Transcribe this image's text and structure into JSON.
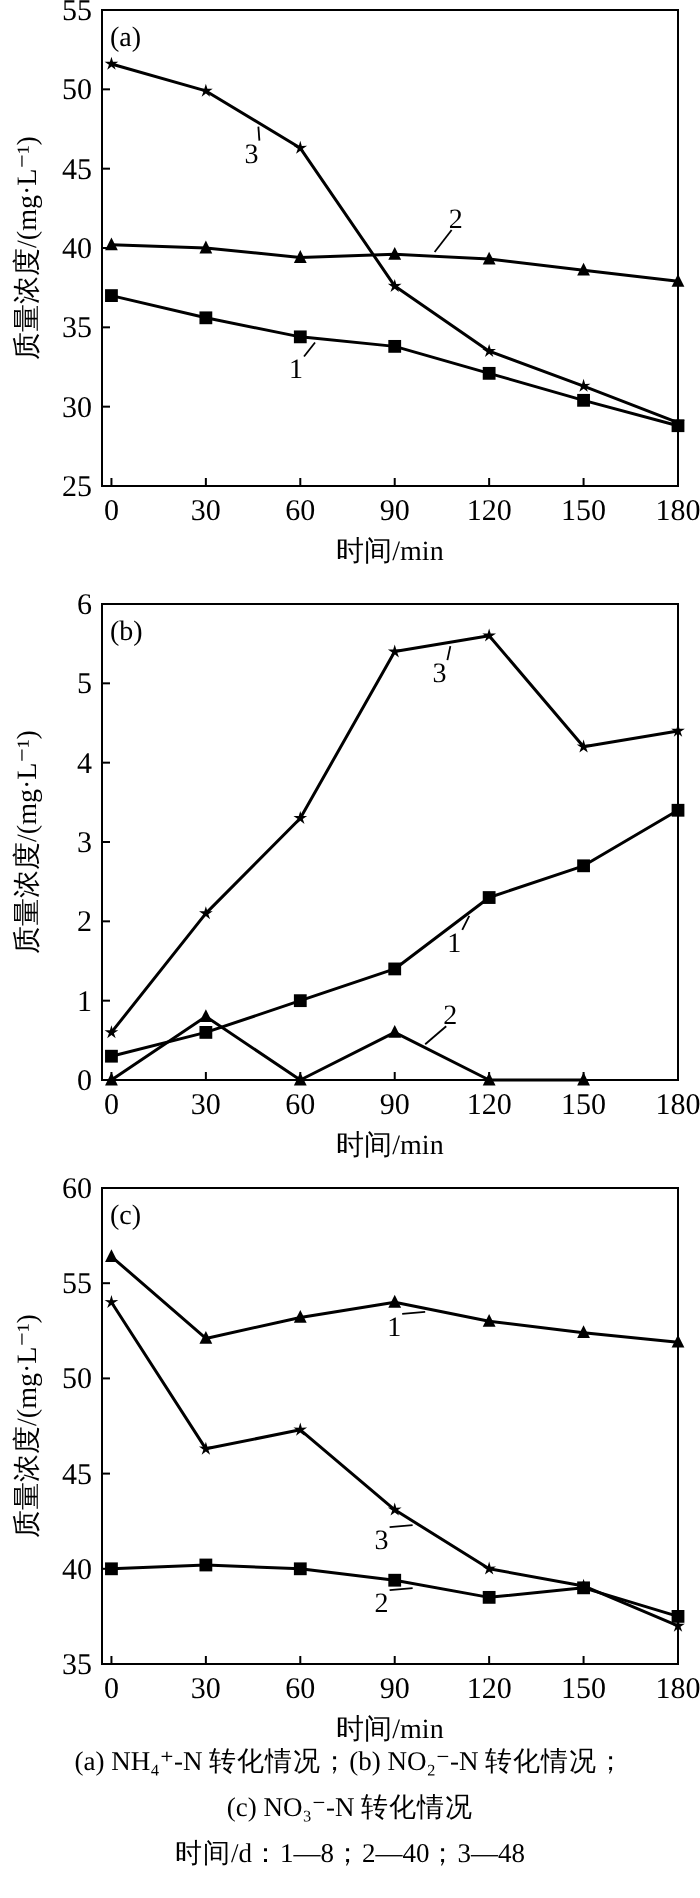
{
  "chart_data": [
    {
      "type": "line",
      "title": "(a)",
      "xlabel": "时间/min",
      "ylabel": "质量浓度/(mg·L⁻¹)",
      "x": [
        0,
        30,
        60,
        90,
        120,
        150,
        180
      ],
      "xlim": [
        -3,
        180
      ],
      "xticks": [
        0,
        30,
        60,
        90,
        120,
        150,
        180
      ],
      "ylim": [
        25,
        55
      ],
      "yticks": [
        25,
        30,
        35,
        40,
        45,
        50,
        55
      ],
      "series": [
        {
          "color": "#000000",
          "marker": "square",
          "values": [
            37.0,
            35.6,
            34.4,
            33.8,
            32.1,
            30.4,
            28.8
          ]
        },
        {
          "color": "#000000",
          "marker": "triangle",
          "values": [
            40.2,
            40.0,
            39.4,
            39.6,
            39.3,
            38.6,
            37.9
          ]
        },
        {
          "color": "#000000",
          "marker": "star",
          "values": [
            51.6,
            49.9,
            46.3,
            37.6,
            33.5,
            31.3,
            29.0
          ]
        }
      ],
      "annotations": [
        {
          "text": "1",
          "x": 65,
          "y": 34.3
        },
        {
          "text": "2",
          "x": 103,
          "y": 39.5
        },
        {
          "text": "3",
          "x": 47,
          "y": 47.9
        }
      ]
    },
    {
      "type": "line",
      "title": "(b)",
      "xlabel": "时间/min",
      "ylabel": "质量浓度/(mg·L⁻¹)",
      "x": [
        0,
        30,
        60,
        90,
        120,
        150,
        180
      ],
      "xlim": [
        -3,
        180
      ],
      "xticks": [
        0,
        30,
        60,
        90,
        120,
        150,
        180
      ],
      "ylim": [
        0,
        6
      ],
      "yticks": [
        0,
        1,
        2,
        3,
        4,
        5,
        6
      ],
      "series": [
        {
          "color": "#000000",
          "marker": "square",
          "values": [
            0.3,
            0.6,
            1.0,
            1.4,
            2.3,
            2.7,
            3.4
          ]
        },
        {
          "color": "#000000",
          "marker": "triangle",
          "values": [
            0,
            0.8,
            0,
            0.6,
            0,
            0,
            null
          ]
        },
        {
          "color": "#000000",
          "marker": "star",
          "values": [
            0.6,
            2.1,
            3.3,
            5.4,
            5.6,
            4.2,
            4.4
          ]
        }
      ],
      "annotations": [
        {
          "text": "1",
          "x": 114,
          "y": 2.12
        },
        {
          "text": "2",
          "x": 100,
          "y": 0.4
        },
        {
          "text": "3",
          "x": 108,
          "y": 5.52
        }
      ]
    },
    {
      "type": "line",
      "title": "(c)",
      "xlabel": "时间/min",
      "ylabel": "质量浓度/(mg·L⁻¹)",
      "x": [
        0,
        30,
        60,
        90,
        120,
        150,
        180
      ],
      "xlim": [
        -3,
        180
      ],
      "xticks": [
        0,
        30,
        60,
        90,
        120,
        150,
        180
      ],
      "ylim": [
        35,
        60
      ],
      "yticks": [
        35,
        40,
        45,
        50,
        55,
        60
      ],
      "series": [
        {
          "color": "#000000",
          "marker": "triangle",
          "values": [
            56.4,
            52.1,
            53.2,
            54.0,
            53.0,
            52.4,
            51.9
          ]
        },
        {
          "color": "#000000",
          "marker": "square",
          "values": [
            40.0,
            40.2,
            40.0,
            39.4,
            38.5,
            39.0,
            37.5
          ]
        },
        {
          "color": "#000000",
          "marker": "star",
          "values": [
            54.0,
            46.3,
            47.3,
            43.1,
            40.0,
            39.1,
            37.0
          ]
        }
      ],
      "annotations": [
        {
          "text": "1",
          "x": 100,
          "y": 53.7
        },
        {
          "text": "2",
          "x": 96,
          "y": 39.2
        },
        {
          "text": "3",
          "x": 96,
          "y": 42.5
        },
        "(a) NH₄⁺-N 转化情况；(b) NO₂⁻-N 转化情况；",
        "(c) NO₃⁻-N 转化情况",
        "时间/d：1—8；2—40；3—48"
      ]
    }
  ]
}
